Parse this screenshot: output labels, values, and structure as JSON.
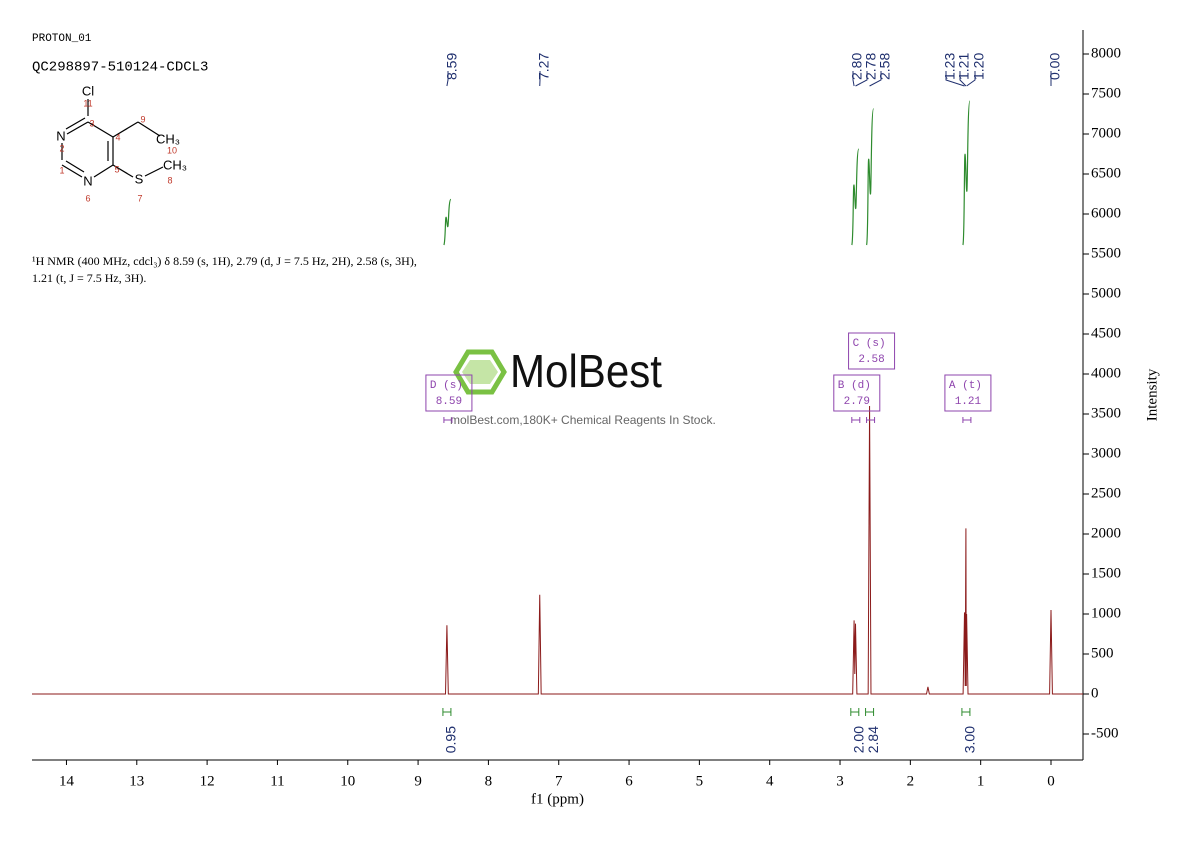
{
  "header": {
    "experiment": "PROTON_01",
    "sample": "QC298897-510124-CDCL3"
  },
  "molecule": {
    "atoms": [
      "Cl",
      "N",
      "N",
      "CH₃",
      "CH₃",
      "S"
    ],
    "numbers": [
      "11",
      "3",
      "2",
      "4",
      "9",
      "10",
      "1",
      "5",
      "8",
      "6",
      "7"
    ]
  },
  "description": "¹H NMR (400 MHz, cdcl₃) δ 8.59 (s, 1H), 2.79 (d, J = 7.5 Hz, 2H), 2.58 (s, 3H), 1.21 (t, J = 7.5 Hz, 3H).",
  "watermark": {
    "brand": "MolBest",
    "tagline": "molBest.com,180K+ Chemical Reagents In Stock."
  },
  "chart_data": {
    "type": "line",
    "x_label": "f1 (ppm)",
    "y_label": "Intensity",
    "color": "#8b1a1a",
    "xlim": [
      14.49,
      -0.455
    ],
    "ylim": [
      -825,
      8300
    ],
    "xticks": [
      0,
      1,
      2,
      3,
      4,
      5,
      6,
      7,
      8,
      9,
      10,
      11,
      12,
      13,
      14
    ],
    "yticks": [
      -500,
      0,
      500,
      1000,
      1500,
      2000,
      2500,
      3000,
      3500,
      4000,
      4500,
      5000,
      5500,
      6000,
      6500,
      7000,
      7500,
      8000
    ],
    "x": [
      14.49,
      8.61,
      8.59,
      8.57,
      7.29,
      7.27,
      7.25,
      2.82,
      2.8,
      2.79,
      2.78,
      2.76,
      2.6,
      2.58,
      2.56,
      1.77,
      1.75,
      1.73,
      1.25,
      1.23,
      1.22,
      1.21,
      1.205,
      1.2,
      1.18,
      0.02,
      0,
      -0.02,
      -0.455
    ],
    "values": [
      0,
      0,
      860,
      0,
      0,
      1240,
      0,
      0,
      920,
      250,
      880,
      0,
      0,
      3600,
      0,
      0,
      90,
      0,
      0,
      1020,
      100,
      2070,
      100,
      1000,
      0,
      0,
      1050,
      0,
      0
    ],
    "peak_labels": [
      8.59,
      7.27,
      {
        "value": 2.8,
        "label": "2.80"
      },
      2.78,
      2.58,
      1.23,
      1.21,
      {
        "value": 1.2,
        "label": "1.20"
      },
      {
        "value": 0,
        "label": "0.00"
      }
    ],
    "integrals": {
      "x": [
        8.59,
        2.79,
        2.58,
        1.21
      ],
      "values": [
        0.95,
        2,
        2.84,
        3
      ],
      "value_labels": [
        "0.95",
        "2.00",
        "2.84",
        "3.00"
      ]
    },
    "multiplets": {
      "labels": [
        "D (s)",
        "C (s)",
        "B (d)",
        "A (t)"
      ],
      "x": [
        8.59,
        2.58,
        2.79,
        1.21
      ]
    }
  }
}
